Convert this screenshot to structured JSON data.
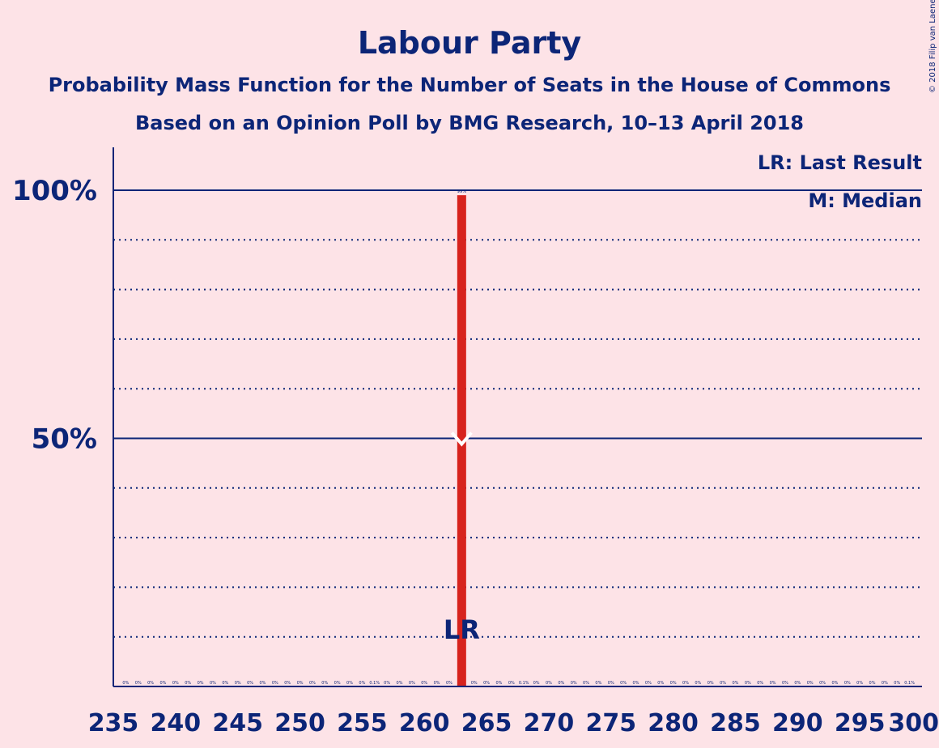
{
  "chart_data": {
    "type": "bar",
    "title": "Labour Party",
    "subtitle": "Probability Mass Function for the Number of Seats in the House of Commons",
    "subtitle2": "Based on an Opinion Poll by BMG Research, 10–13 April 2018",
    "copyright": "© 2018 Filip van Laenen",
    "xlim": [
      235,
      300
    ],
    "ylim": [
      0,
      1.08
    ],
    "x_ticks": [
      235,
      240,
      245,
      250,
      255,
      260,
      265,
      270,
      275,
      280,
      285,
      290,
      295,
      300
    ],
    "y_ticks": [
      {
        "value": 1.0,
        "label": "100%"
      },
      {
        "value": 0.5,
        "label": "50%"
      }
    ],
    "gridlines": [
      0.1,
      0.2,
      0.3,
      0.4,
      0.6,
      0.7,
      0.8,
      0.9
    ],
    "solid_lines": [
      0.5,
      1.0
    ],
    "x": [
      236,
      237,
      238,
      239,
      240,
      241,
      242,
      243,
      244,
      245,
      246,
      247,
      248,
      249,
      250,
      251,
      252,
      253,
      254,
      255,
      256,
      257,
      258,
      259,
      260,
      261,
      262,
      263,
      264,
      265,
      266,
      267,
      268,
      269,
      270,
      271,
      272,
      273,
      274,
      275,
      276,
      277,
      278,
      279,
      280,
      281,
      282,
      283,
      284,
      285,
      286,
      287,
      288,
      289,
      290,
      291,
      292,
      293,
      294,
      295,
      296,
      297,
      298,
      299
    ],
    "values": [
      0,
      0,
      0,
      0,
      0,
      0,
      0,
      0,
      0,
      0,
      0,
      0,
      0,
      0,
      0,
      0,
      0,
      0,
      0,
      0,
      0.001,
      0,
      0,
      0,
      0,
      0,
      0,
      0.99,
      0,
      0,
      0,
      0,
      0.001,
      0,
      0,
      0,
      0,
      0,
      0,
      0,
      0,
      0,
      0,
      0,
      0,
      0,
      0,
      0,
      0,
      0,
      0,
      0,
      0,
      0,
      0,
      0,
      0,
      0,
      0,
      0,
      0,
      0,
      0,
      0.001
    ],
    "bar_labels": [
      "0%",
      "0%",
      "0%",
      "0%",
      "0%",
      "0%",
      "0%",
      "0%",
      "0%",
      "0%",
      "0%",
      "0%",
      "0%",
      "0%",
      "0%",
      "0%",
      "0%",
      "0%",
      "0%",
      "0%",
      "0.1%",
      "0%",
      "0%",
      "0%",
      "0%",
      "0%",
      "0%",
      "99%",
      "0%",
      "0%",
      "0%",
      "0%",
      "0.1%",
      "0%",
      "0%",
      "0%",
      "0%",
      "0%",
      "0%",
      "0%",
      "0%",
      "0%",
      "0%",
      "0%",
      "0%",
      "0%",
      "0%",
      "0%",
      "0%",
      "0%",
      "0%",
      "0%",
      "0%",
      "0%",
      "0%",
      "0%",
      "0%",
      "0%",
      "0%",
      "0%",
      "0%",
      "0%",
      "0%",
      "0.1%"
    ],
    "last_result": 263,
    "median": 263,
    "lr_marker_label": "LR",
    "median_marker_label": "M",
    "legend": [
      "LR: Last Result",
      "M: Median"
    ],
    "legend_position": "top-right",
    "colors": {
      "background": "#fde3e7",
      "text": "#0c2577",
      "bar_main": "#d7231d",
      "bar_minor": "#e8736f",
      "median_marker": "#ffffff"
    }
  }
}
